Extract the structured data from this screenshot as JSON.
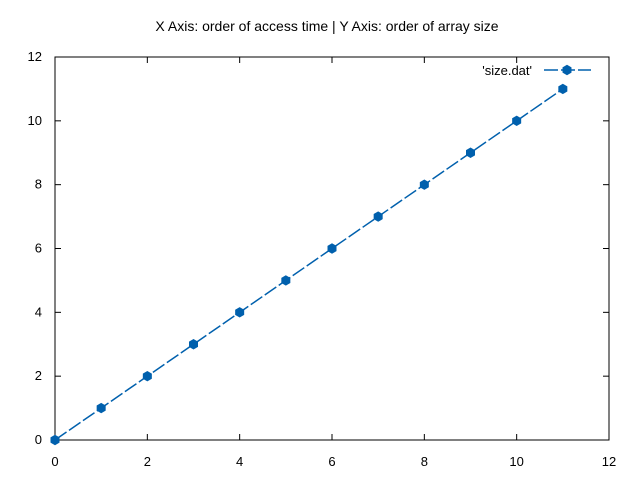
{
  "chart_data": {
    "type": "line",
    "title": "X Axis: order of access time | Y Axis: order of array size",
    "xlabel": "",
    "ylabel": "",
    "xlim": [
      0,
      12
    ],
    "ylim": [
      0,
      12
    ],
    "xticks": [
      0,
      2,
      4,
      6,
      8,
      10,
      12
    ],
    "yticks": [
      0,
      2,
      4,
      6,
      8,
      10,
      12
    ],
    "grid": false,
    "legend_position": "top-right",
    "series": [
      {
        "name": "'size.dat'",
        "color": "#0060ad",
        "line_style": "dashed",
        "marker": "hexagon",
        "x": [
          0,
          1,
          2,
          3,
          4,
          5,
          6,
          7,
          8,
          9,
          10,
          11
        ],
        "y": [
          0,
          1,
          2,
          3,
          4,
          5,
          6,
          7,
          8,
          9,
          10,
          11
        ]
      }
    ]
  }
}
